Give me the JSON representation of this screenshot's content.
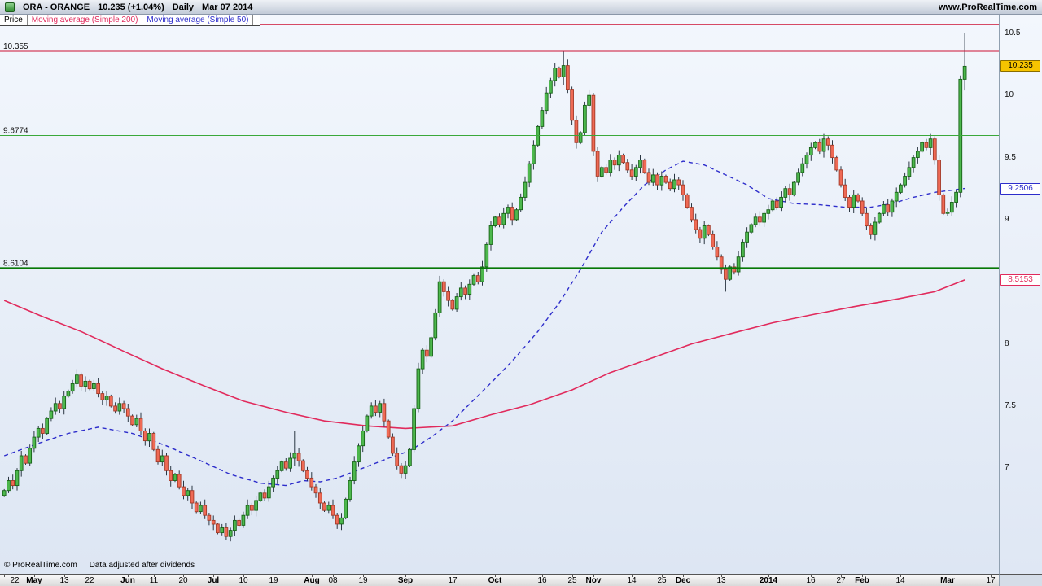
{
  "header": {
    "symbol": "ORA - ORANGE",
    "price": "10.235 (+1.04%)",
    "timeframe": "Daily",
    "date": "Mar 07 2014",
    "site": "www.ProRealTime.com"
  },
  "legend": {
    "price_label": "Price",
    "ma200_label": "Moving average (Simple 200)",
    "ma50_label": "Moving average (Simple 50)",
    "ma200_color": "#e12a5c",
    "ma50_color": "#2d2dcb"
  },
  "footer": {
    "copyright": "© ProRealTime.com",
    "note": "Data adjusted after dividends"
  },
  "chart_data": {
    "type": "candlestick",
    "title": "ORA - ORANGE Daily",
    "last_price": 10.235,
    "change_pct": 1.04,
    "y_range": [
      6.15,
      10.65
    ],
    "y_ticks": [
      7,
      7.5,
      8,
      9,
      9.5,
      10,
      10.5
    ],
    "x_slots": 234,
    "note": "closes read from chart; open of each day = previous close",
    "first_open": 6.78,
    "closes": [
      6.82,
      6.9,
      6.86,
      6.98,
      7.1,
      7.04,
      7.16,
      7.25,
      7.32,
      7.28,
      7.4,
      7.46,
      7.52,
      7.48,
      7.58,
      7.62,
      7.68,
      7.75,
      7.66,
      7.7,
      7.64,
      7.68,
      7.6,
      7.55,
      7.58,
      7.5,
      7.46,
      7.52,
      7.48,
      7.42,
      7.35,
      7.4,
      7.3,
      7.22,
      7.28,
      7.15,
      7.05,
      7.1,
      6.98,
      6.9,
      6.95,
      6.85,
      6.78,
      6.82,
      6.72,
      6.65,
      6.7,
      6.62,
      6.58,
      6.55,
      6.48,
      6.52,
      6.45,
      6.5,
      6.58,
      6.54,
      6.62,
      6.7,
      6.66,
      6.74,
      6.8,
      6.76,
      6.85,
      6.92,
      6.98,
      7.05,
      7.0,
      7.08,
      7.12,
      7.06,
      6.98,
      6.92,
      6.85,
      6.8,
      6.72,
      6.66,
      6.7,
      6.62,
      6.55,
      6.6,
      6.75,
      6.9,
      7.05,
      7.18,
      7.3,
      7.42,
      7.5,
      7.45,
      7.52,
      7.38,
      7.25,
      7.12,
      7.02,
      6.96,
      7.02,
      7.15,
      7.48,
      7.8,
      7.95,
      7.9,
      8.05,
      8.25,
      8.5,
      8.42,
      8.35,
      8.28,
      8.38,
      8.45,
      8.4,
      8.48,
      8.55,
      8.5,
      8.62,
      8.8,
      8.95,
      9.02,
      8.96,
      9.05,
      9.1,
      9.0,
      9.08,
      9.18,
      9.3,
      9.45,
      9.6,
      9.75,
      9.88,
      10.02,
      10.12,
      10.22,
      10.15,
      10.24,
      10.05,
      9.8,
      9.62,
      9.7,
      9.92,
      10.0,
      9.55,
      9.35,
      9.42,
      9.38,
      9.48,
      9.44,
      9.52,
      9.46,
      9.4,
      9.35,
      9.42,
      9.48,
      9.38,
      9.3,
      9.36,
      9.28,
      9.35,
      9.3,
      9.25,
      9.32,
      9.28,
      9.2,
      9.1,
      9.0,
      8.92,
      8.85,
      8.95,
      8.88,
      8.78,
      8.7,
      8.6,
      8.52,
      8.62,
      8.58,
      8.7,
      8.82,
      8.9,
      8.96,
      9.02,
      8.98,
      9.05,
      9.08,
      9.15,
      9.1,
      9.18,
      9.25,
      9.2,
      9.3,
      9.38,
      9.45,
      9.52,
      9.58,
      9.62,
      9.55,
      9.65,
      9.6,
      9.5,
      9.4,
      9.28,
      9.18,
      9.1,
      9.2,
      9.15,
      9.05,
      8.95,
      8.88,
      8.98,
      9.05,
      9.12,
      9.06,
      9.15,
      9.22,
      9.28,
      9.35,
      9.42,
      9.5,
      9.55,
      9.62,
      9.58,
      9.65,
      9.48,
      9.2,
      9.05,
      9.06,
      9.14,
      9.22,
      10.13,
      10.235
    ],
    "wick_overrides": {
      "52": [
        6.56,
        6.42
      ],
      "68": [
        7.3,
        7.02
      ],
      "131": [
        10.355,
        10.08
      ],
      "169": [
        8.64,
        8.42
      ],
      "192": [
        9.69,
        9.5
      ],
      "217": [
        9.69,
        9.52
      ],
      "224": [
        10.16,
        9.18
      ],
      "225": [
        10.5,
        10.04
      ]
    },
    "x_ticks": [
      {
        "i": 0,
        "label": "22",
        "bold": false
      },
      {
        "i": 7,
        "label": "May",
        "bold": true
      },
      {
        "i": 14,
        "label": "13",
        "bold": false
      },
      {
        "i": 20,
        "label": "22",
        "bold": false
      },
      {
        "i": 29,
        "label": "Jun",
        "bold": true
      },
      {
        "i": 35,
        "label": "11",
        "bold": false
      },
      {
        "i": 42,
        "label": "20",
        "bold": false
      },
      {
        "i": 49,
        "label": "Jul",
        "bold": true
      },
      {
        "i": 56,
        "label": "10",
        "bold": false
      },
      {
        "i": 63,
        "label": "19",
        "bold": false
      },
      {
        "i": 72,
        "label": "Aug",
        "bold": true
      },
      {
        "i": 77,
        "label": "08",
        "bold": false
      },
      {
        "i": 84,
        "label": "19",
        "bold": false
      },
      {
        "i": 94,
        "label": "Sep",
        "bold": true
      },
      {
        "i": 105,
        "label": "17",
        "bold": false
      },
      {
        "i": 115,
        "label": "Oct",
        "bold": true
      },
      {
        "i": 126,
        "label": "16",
        "bold": false
      },
      {
        "i": 133,
        "label": "25",
        "bold": false
      },
      {
        "i": 138,
        "label": "Nov",
        "bold": true
      },
      {
        "i": 147,
        "label": "14",
        "bold": false
      },
      {
        "i": 154,
        "label": "25",
        "bold": false
      },
      {
        "i": 159,
        "label": "Dec",
        "bold": true
      },
      {
        "i": 168,
        "label": "13",
        "bold": false
      },
      {
        "i": 179,
        "label": "2014",
        "bold": true
      },
      {
        "i": 189,
        "label": "16",
        "bold": false
      },
      {
        "i": 196,
        "label": "27",
        "bold": false
      },
      {
        "i": 201,
        "label": "Feb",
        "bold": true
      },
      {
        "i": 210,
        "label": "14",
        "bold": false
      },
      {
        "i": 221,
        "label": "Mar",
        "bold": true
      },
      {
        "i": 231,
        "label": "17",
        "bold": false
      }
    ],
    "horizontal_lines": [
      {
        "price": 10.57,
        "color": "#cc1133",
        "width": 1,
        "label": ""
      },
      {
        "price": 10.355,
        "color": "#cc1133",
        "width": 1,
        "label": "10.355"
      },
      {
        "price": 9.6774,
        "color": "#3aa83a",
        "width": 1,
        "label": "9.6774"
      },
      {
        "price": 8.6104,
        "color": "#067806",
        "width": 2,
        "label": "8.6104"
      }
    ],
    "right_badges": [
      {
        "name": "last-price-badge",
        "value": "10.235",
        "price": 10.235,
        "bg": "#f6c400",
        "color": "#000000",
        "border": "#8a6d00"
      },
      {
        "name": "ma50-value-badge",
        "value": "9.2506",
        "price": 9.2506,
        "bg": "#ffffff",
        "color": "#2d2dcb",
        "border": "#2d2dcb"
      },
      {
        "name": "ma200-value-badge",
        "value": "8.5153",
        "price": 8.5153,
        "bg": "#ffffff",
        "color": "#e12a5c",
        "border": "#e12a5c"
      }
    ],
    "ma200": {
      "name": "Moving average (Simple 200)",
      "color": "#e12a5c",
      "points": [
        [
          0,
          8.35
        ],
        [
          9,
          8.22
        ],
        [
          18,
          8.1
        ],
        [
          28,
          7.94
        ],
        [
          37,
          7.8
        ],
        [
          47,
          7.66
        ],
        [
          56,
          7.54
        ],
        [
          66,
          7.45
        ],
        [
          75,
          7.38
        ],
        [
          85,
          7.34
        ],
        [
          94,
          7.32
        ],
        [
          105,
          7.34
        ],
        [
          114,
          7.43
        ],
        [
          123,
          7.51
        ],
        [
          133,
          7.63
        ],
        [
          142,
          7.77
        ],
        [
          152,
          7.89
        ],
        [
          161,
          8.0
        ],
        [
          171,
          8.09
        ],
        [
          180,
          8.17
        ],
        [
          190,
          8.24
        ],
        [
          199,
          8.3
        ],
        [
          209,
          8.36
        ],
        [
          218,
          8.42
        ],
        [
          225,
          8.515
        ]
      ]
    },
    "ma50": {
      "name": "Moving average (Simple 50)",
      "color": "#2d2dcb",
      "points": [
        [
          0,
          7.1
        ],
        [
          8,
          7.2
        ],
        [
          15,
          7.28
        ],
        [
          22,
          7.33
        ],
        [
          30,
          7.28
        ],
        [
          38,
          7.18
        ],
        [
          46,
          7.06
        ],
        [
          53,
          6.95
        ],
        [
          60,
          6.88
        ],
        [
          66,
          6.86
        ],
        [
          70,
          6.9
        ],
        [
          74,
          6.89
        ],
        [
          78,
          6.92
        ],
        [
          84,
          7.0
        ],
        [
          90,
          7.08
        ],
        [
          95,
          7.14
        ],
        [
          100,
          7.25
        ],
        [
          105,
          7.38
        ],
        [
          110,
          7.55
        ],
        [
          115,
          7.72
        ],
        [
          120,
          7.9
        ],
        [
          125,
          8.1
        ],
        [
          130,
          8.33
        ],
        [
          135,
          8.6
        ],
        [
          140,
          8.9
        ],
        [
          145,
          9.1
        ],
        [
          150,
          9.28
        ],
        [
          155,
          9.4
        ],
        [
          159,
          9.47
        ],
        [
          164,
          9.44
        ],
        [
          169,
          9.36
        ],
        [
          174,
          9.28
        ],
        [
          179,
          9.17
        ],
        [
          185,
          9.13
        ],
        [
          191,
          9.12
        ],
        [
          197,
          9.1
        ],
        [
          203,
          9.1
        ],
        [
          208,
          9.13
        ],
        [
          213,
          9.18
        ],
        [
          218,
          9.22
        ],
        [
          225,
          9.2506
        ]
      ]
    },
    "colors": {
      "bg_top": "#f3f7fd",
      "bg_bottom": "#dde6f3",
      "up_fill": "#4db84d",
      "up_stroke": "#176117",
      "down_fill": "#ef6a55",
      "down_stroke": "#a33927",
      "wick": "#2a3642"
    }
  }
}
